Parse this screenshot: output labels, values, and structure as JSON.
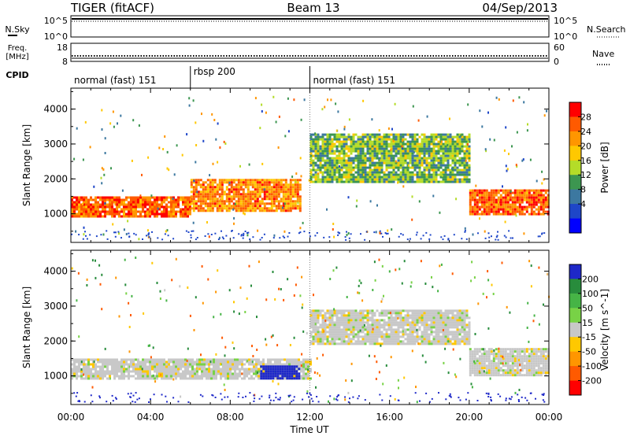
{
  "header": {
    "station": "TIGER (fitACF)",
    "beam": "Beam 13",
    "date": "04/Sep/2013"
  },
  "noise_panel": {
    "left_label": "N.Sky",
    "right_label": "N.Search",
    "ticks_left": [
      "10^5",
      "10^0"
    ],
    "ticks_right": [
      "10^5",
      "10^0"
    ]
  },
  "freq_panel": {
    "left_label_1": "Freq.",
    "left_label_2": "[MHz]",
    "right_label": "Nave",
    "ticks_left": [
      "18",
      "8"
    ],
    "ticks_right": [
      "60",
      "0"
    ]
  },
  "cpid": {
    "label": "CPID",
    "segments": [
      {
        "name": "normal (fast) 151",
        "start_h": 0,
        "end_h": 6
      },
      {
        "name": "rbsp 200",
        "start_h": 6,
        "end_h": 12
      },
      {
        "name": "normal (fast) 151",
        "start_h": 12,
        "end_h": 24
      }
    ]
  },
  "xaxis": {
    "label": "Time UT",
    "ticks": [
      "00:00",
      "04:00",
      "08:00",
      "12:00",
      "16:00",
      "20:00",
      "00:00"
    ]
  },
  "chart_data": [
    {
      "type": "heatmap",
      "title": "",
      "xlabel": "Time UT",
      "ylabel": "Slant Range [km]",
      "xlim_hours": [
        0,
        24
      ],
      "ylim": [
        180,
        4600
      ],
      "yticks": [
        1000,
        2000,
        3000,
        4000
      ],
      "colorbar": {
        "label": "Power [dB]",
        "ticks": [
          "28",
          "24",
          "20",
          "16",
          "12",
          "8",
          "4"
        ],
        "colors": [
          "#ff0000",
          "#ff5a00",
          "#ff9600",
          "#ffc800",
          "#b4dc28",
          "#3c9650",
          "#3c78a0",
          "#1e46c8",
          "#0000ff"
        ]
      },
      "bands": [
        {
          "t_start": 0.0,
          "t_end": 6.0,
          "r_low": 900,
          "r_high": 1500,
          "value_dB": 24
        },
        {
          "t_start": 6.0,
          "t_end": 11.5,
          "r_low": 1100,
          "r_high": 2000,
          "value_dB": 22
        },
        {
          "t_start": 12.0,
          "t_end": 20.0,
          "r_low": 1900,
          "r_high": 3300,
          "value_dB": 12
        },
        {
          "t_start": 20.0,
          "t_end": 24.0,
          "r_low": 1000,
          "r_high": 1700,
          "value_dB": 24
        }
      ]
    },
    {
      "type": "heatmap",
      "title": "",
      "xlabel": "Time UT",
      "ylabel": "Slant Range [km]",
      "xlim_hours": [
        0,
        24
      ],
      "ylim": [
        180,
        4600
      ],
      "yticks": [
        1000,
        2000,
        3000,
        4000
      ],
      "colorbar": {
        "label": "Velocity [m s^-1]",
        "ticks": [
          "200",
          "100",
          "50",
          "15",
          "-15",
          "-50",
          "-100",
          "-200"
        ],
        "colors": [
          "#1e28c8",
          "#288c3c",
          "#46b446",
          "#78d246",
          "#c8c8c8",
          "#ffc800",
          "#ff9600",
          "#ff5a00",
          "#ff0000"
        ]
      },
      "bands": [
        {
          "t_start": 0.0,
          "t_end": 12.0,
          "r_low": 900,
          "r_high": 1500,
          "value_ms": 0
        },
        {
          "t_start": 12.0,
          "t_end": 20.0,
          "r_low": 1900,
          "r_high": 2900,
          "value_ms": 0
        },
        {
          "t_start": 9.5,
          "t_end": 11.5,
          "r_low": 900,
          "r_high": 1300,
          "value_ms": 200
        },
        {
          "t_start": 20.0,
          "t_end": 24.0,
          "r_low": 1000,
          "r_high": 1800,
          "value_ms": 0
        }
      ]
    }
  ]
}
